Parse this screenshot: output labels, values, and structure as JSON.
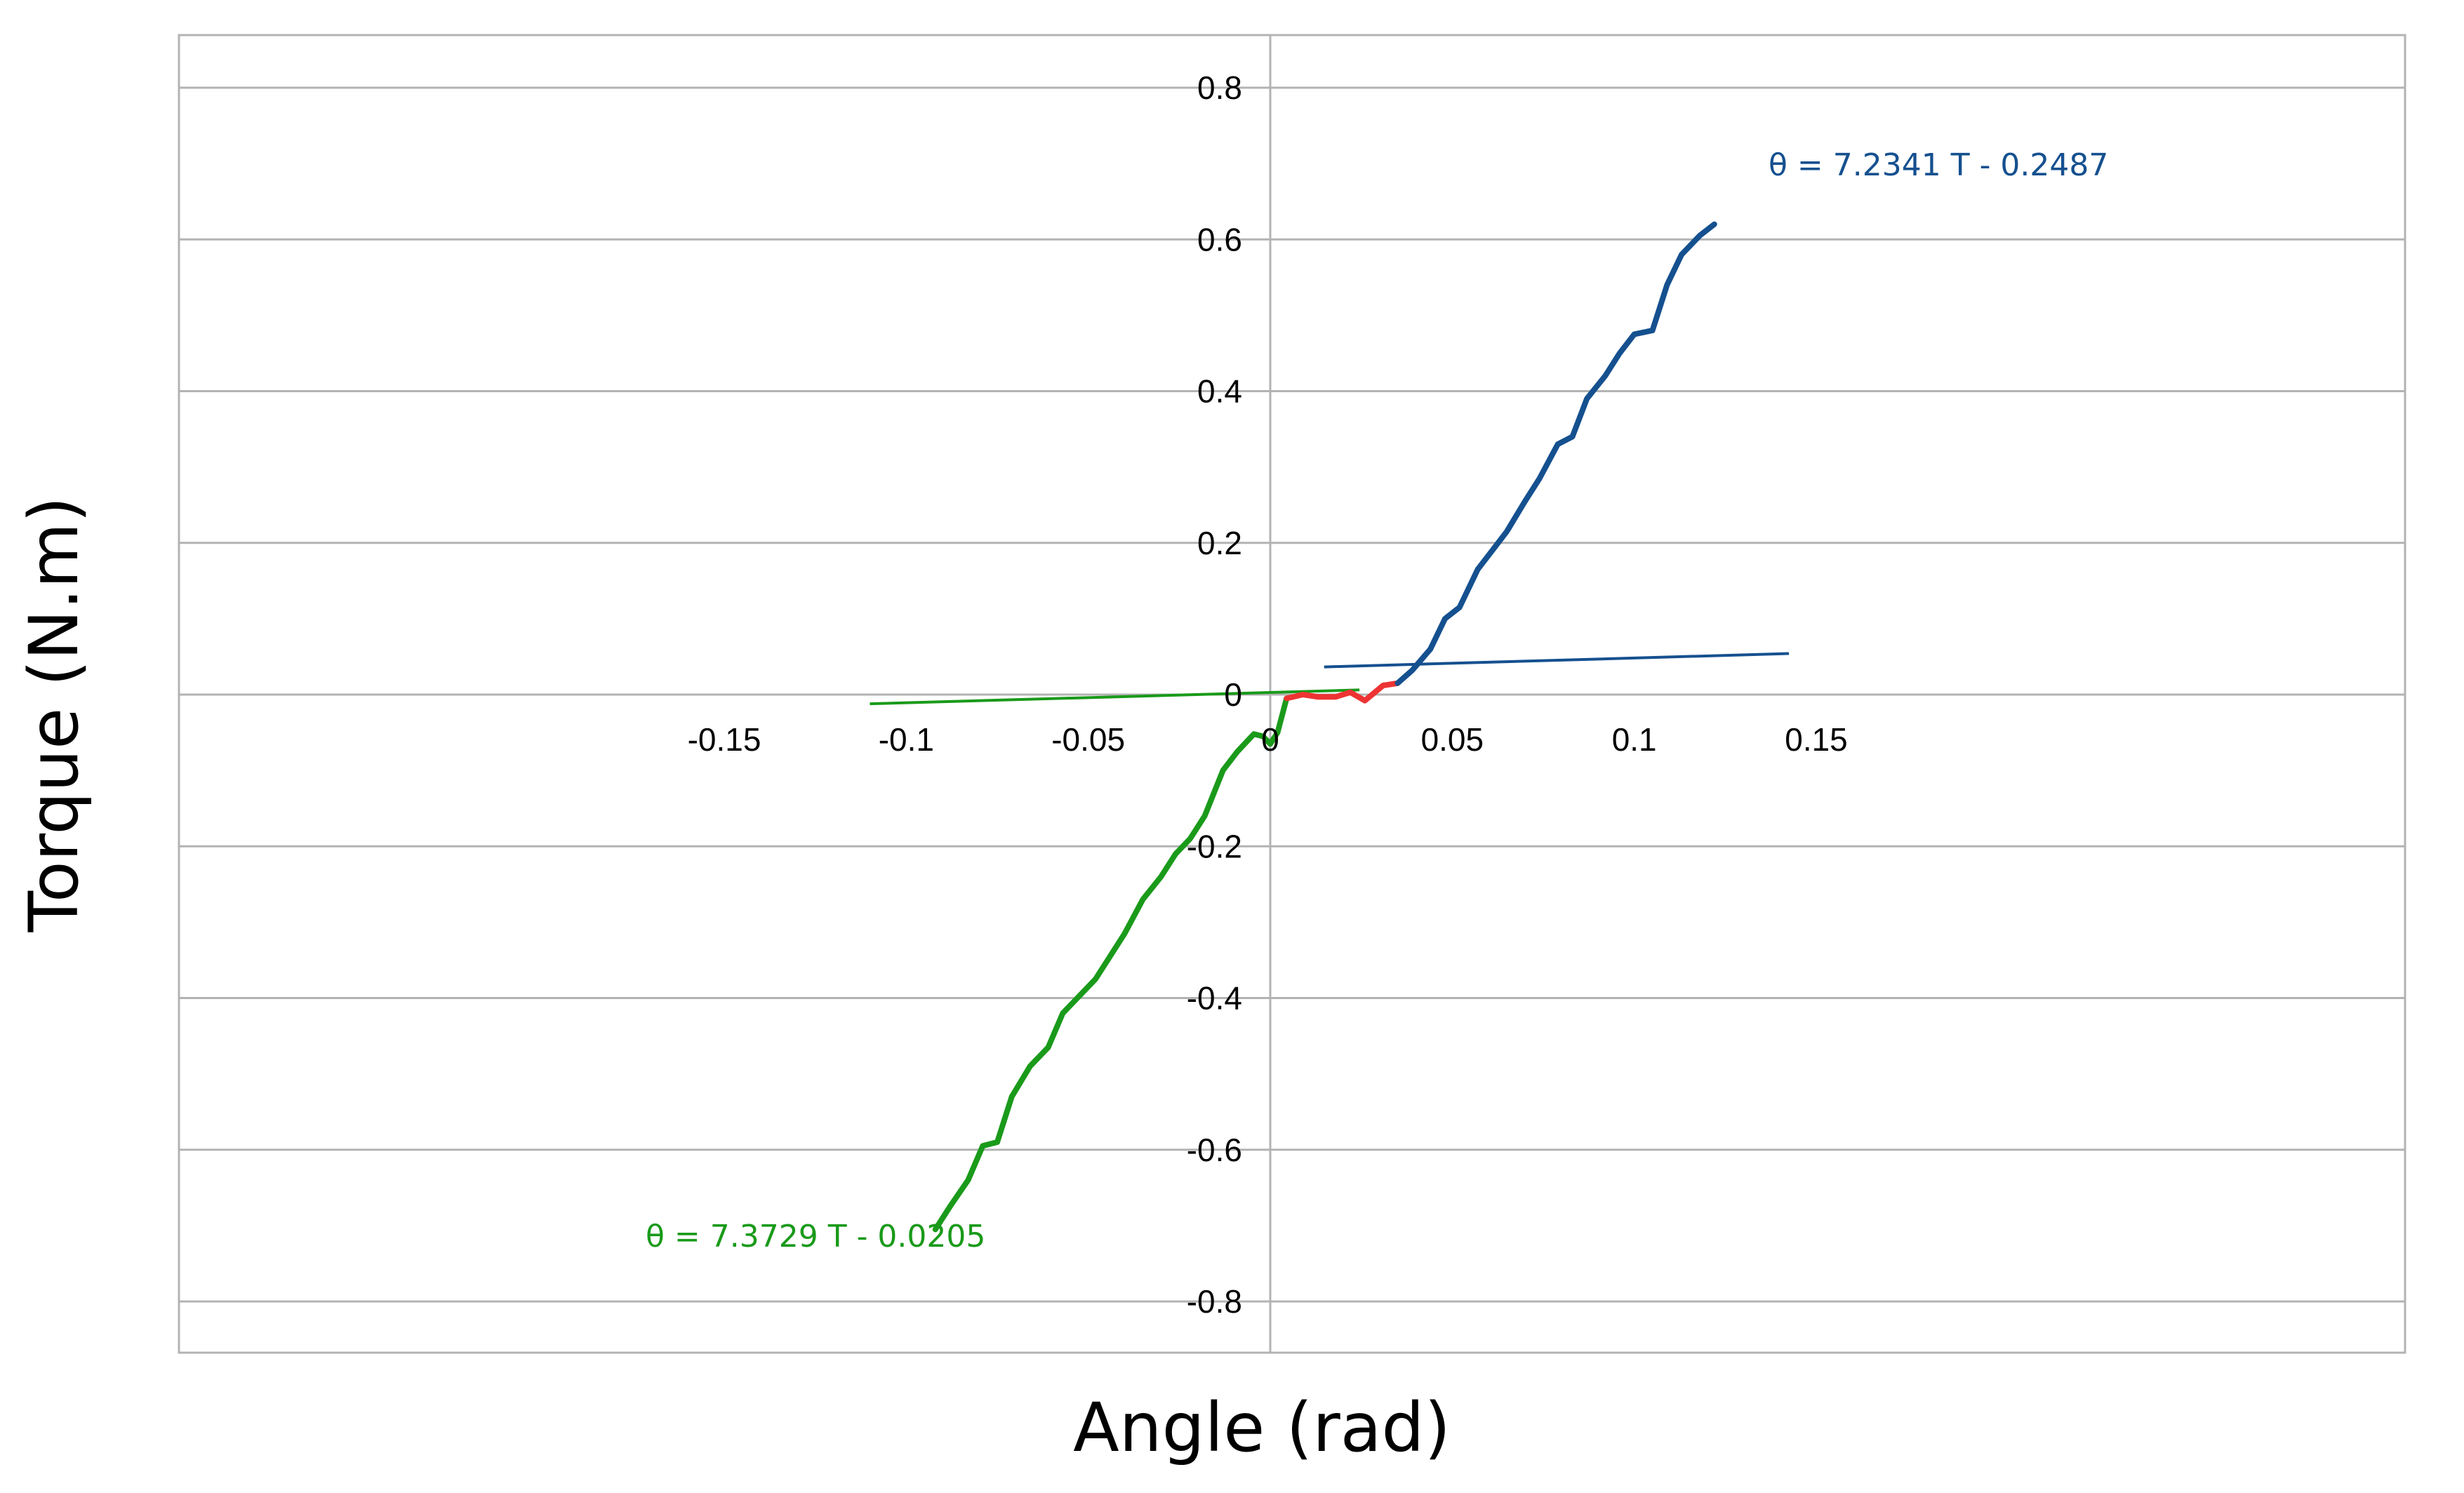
{
  "chart_data": {
    "type": "line",
    "title": "",
    "xlabel": "Angle (rad)",
    "ylabel": "Torque (N.m)",
    "xlim": [
      -0.15,
      0.15
    ],
    "ylim": [
      -0.88,
      0.87
    ],
    "grid": true,
    "legend": "none",
    "x_ticks": [
      -0.15,
      -0.1,
      -0.05,
      0,
      0.05,
      0.1,
      0.15
    ],
    "x_tick_labels": [
      "-0.15",
      "-0.1",
      "-0.05",
      "0",
      "0.05",
      "0.1",
      "0.15"
    ],
    "y_ticks": [
      0.8,
      0.6,
      0.4,
      0.2,
      0,
      -0.2,
      -0.4,
      -0.6,
      -0.8
    ],
    "y_tick_labels": [
      "0.8",
      "0.6",
      "0.4",
      "0.2",
      "0",
      "-0.2",
      "-0.4",
      "-0.6",
      "-0.8"
    ],
    "series": [
      {
        "color": "#1a9a1a",
        "points": [
          [
            -0.092,
            -0.705
          ],
          [
            -0.088,
            -0.675
          ],
          [
            -0.083,
            -0.64
          ],
          [
            -0.079,
            -0.595
          ],
          [
            -0.075,
            -0.59
          ],
          [
            -0.071,
            -0.53
          ],
          [
            -0.066,
            -0.49
          ],
          [
            -0.061,
            -0.465
          ],
          [
            -0.057,
            -0.42
          ],
          [
            -0.052,
            -0.395
          ],
          [
            -0.048,
            -0.375
          ],
          [
            -0.044,
            -0.345
          ],
          [
            -0.04,
            -0.315
          ],
          [
            -0.035,
            -0.27
          ],
          [
            -0.03,
            -0.24
          ],
          [
            -0.026,
            -0.21
          ],
          [
            -0.022,
            -0.19
          ],
          [
            -0.018,
            -0.16
          ],
          [
            -0.013,
            -0.1
          ],
          [
            -0.009,
            -0.075
          ],
          [
            -0.0045,
            -0.052
          ],
          [
            -0.002,
            -0.055
          ],
          [
            0.0,
            -0.065
          ],
          [
            0.002,
            -0.05
          ],
          [
            0.0045,
            -0.005
          ]
        ]
      },
      {
        "color": "#ee3333",
        "points": [
          [
            0.0045,
            -0.005
          ],
          [
            0.009,
            0.0
          ],
          [
            0.013,
            -0.003
          ],
          [
            0.018,
            -0.003
          ],
          [
            0.022,
            0.003
          ],
          [
            0.026,
            -0.008
          ],
          [
            0.031,
            0.012
          ],
          [
            0.035,
            0.015
          ]
        ]
      },
      {
        "color": "#15508f",
        "points": [
          [
            0.035,
            0.015
          ],
          [
            0.039,
            0.032
          ],
          [
            0.044,
            0.06
          ],
          [
            0.048,
            0.1
          ],
          [
            0.052,
            0.115
          ],
          [
            0.057,
            0.165
          ],
          [
            0.061,
            0.19
          ],
          [
            0.065,
            0.215
          ],
          [
            0.07,
            0.255
          ],
          [
            0.074,
            0.285
          ],
          [
            0.079,
            0.33
          ],
          [
            0.083,
            0.34
          ],
          [
            0.087,
            0.39
          ],
          [
            0.092,
            0.42
          ],
          [
            0.096,
            0.45
          ],
          [
            0.1,
            0.475
          ],
          [
            0.105,
            0.48
          ],
          [
            0.109,
            0.54
          ],
          [
            0.113,
            0.58
          ],
          [
            0.118,
            0.605
          ],
          [
            0.122,
            0.62
          ]
        ]
      }
    ],
    "trendlines": [
      {
        "label": "θ = 7.3729 T - 0.0205",
        "color": "#1a9a1a",
        "x": [
          -0.11,
          0.0245
        ]
      },
      {
        "label": "θ = 7.2341 T - 0.2487",
        "color": "#15508f",
        "x": [
          0.0148,
          0.1425
        ]
      }
    ]
  }
}
